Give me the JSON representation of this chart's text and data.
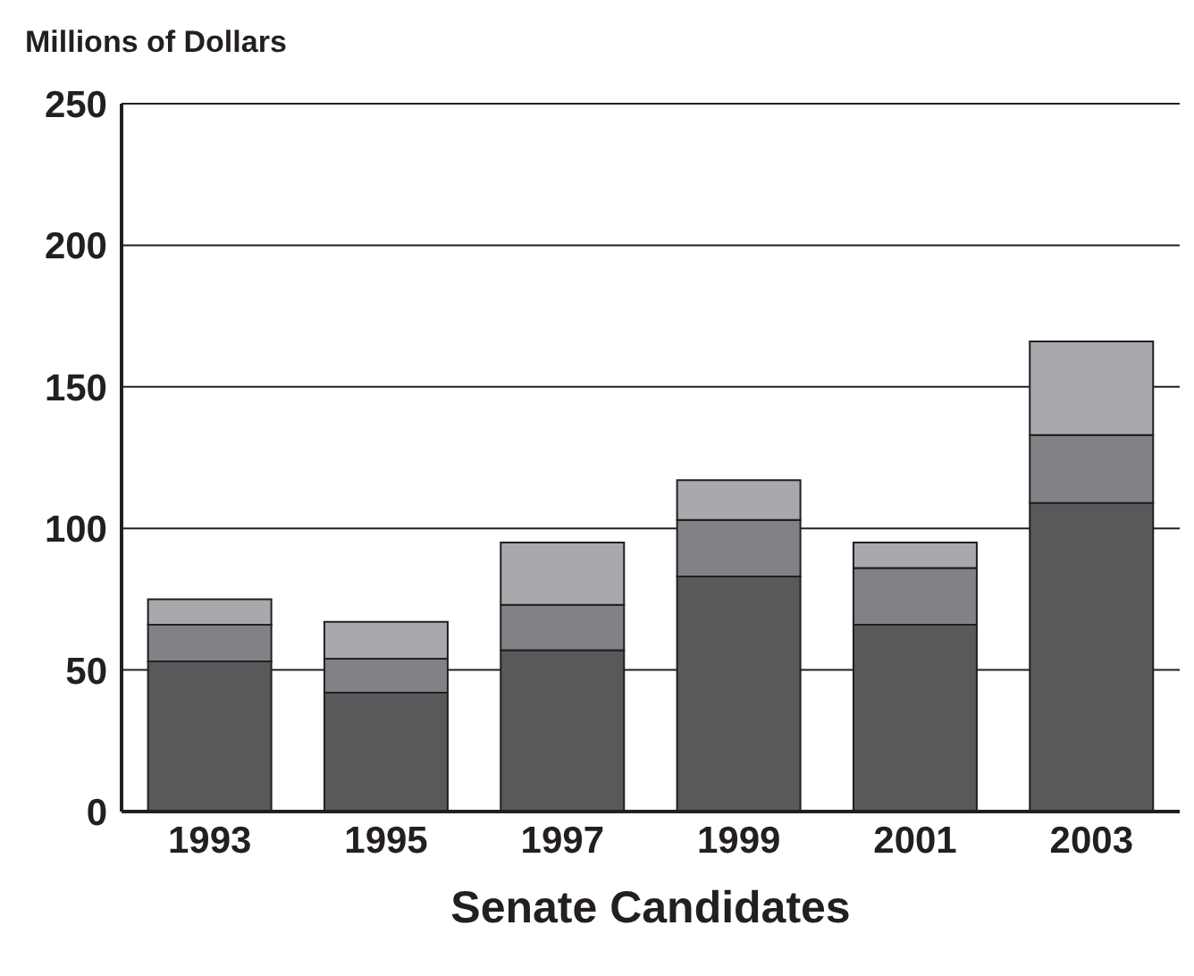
{
  "chart_data": {
    "type": "bar",
    "stacked": true,
    "xlabel": "Senate Candidates",
    "ylabel": "Millions of Dollars",
    "categories": [
      "1993",
      "1995",
      "1997",
      "1999",
      "2001",
      "2003"
    ],
    "series": [
      {
        "color": "#58595b",
        "values": [
          53,
          42,
          57,
          83,
          66,
          109
        ]
      },
      {
        "color": "#808285",
        "values": [
          13,
          12,
          16,
          20,
          20,
          24
        ]
      },
      {
        "color": "#a7a9ac",
        "values": [
          9,
          13,
          22,
          14,
          9,
          33
        ]
      }
    ],
    "ylim": [
      0,
      250
    ],
    "yticks": [
      0,
      50,
      100,
      150,
      200,
      250
    ],
    "grid": "y"
  }
}
